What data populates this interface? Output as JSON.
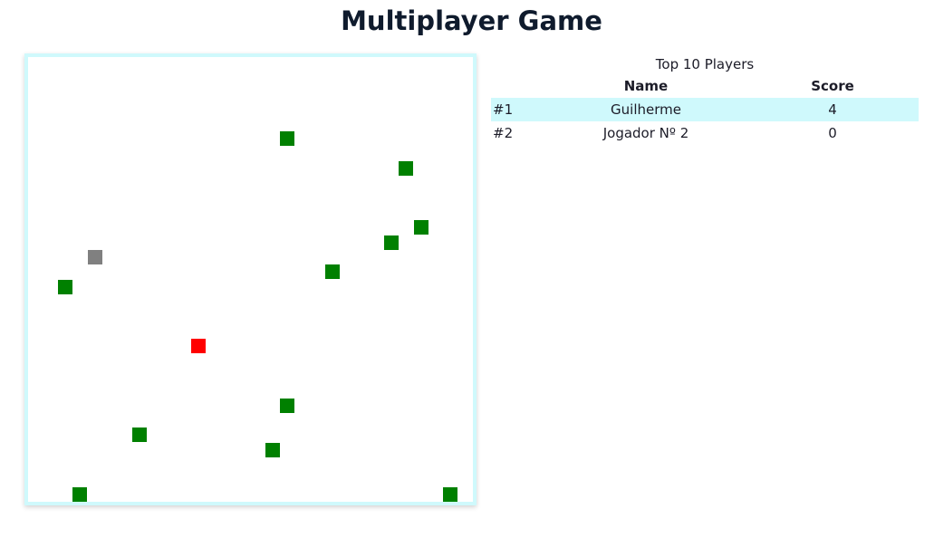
{
  "title": "Multiplayer Game",
  "colors": {
    "board_border": "#cff9fc",
    "fruit": "#008000",
    "current_player": "#ff0000",
    "other_player": "#808080",
    "highlight_row": "#cff9fc"
  },
  "board": {
    "grid_cells": 30,
    "fruits": [
      {
        "col": 17,
        "row": 5
      },
      {
        "col": 25,
        "row": 7
      },
      {
        "col": 26,
        "row": 11
      },
      {
        "col": 24,
        "row": 12
      },
      {
        "col": 20,
        "row": 14
      },
      {
        "col": 2,
        "row": 15
      },
      {
        "col": 17,
        "row": 23
      },
      {
        "col": 7,
        "row": 25
      },
      {
        "col": 16,
        "row": 26
      },
      {
        "col": 3,
        "row": 29
      },
      {
        "col": 28,
        "row": 29
      }
    ],
    "players": [
      {
        "col": 11,
        "row": 19,
        "type": "current"
      },
      {
        "col": 4,
        "row": 13,
        "type": "other"
      }
    ]
  },
  "scoreboard": {
    "caption": "Top 10 Players",
    "headers": {
      "rank": "",
      "name": "Name",
      "score": "Score"
    },
    "rows": [
      {
        "rank": "#1",
        "name": "Guilherme",
        "score": "4",
        "current": true
      },
      {
        "rank": "#2",
        "name": "Jogador Nº 2",
        "score": "0",
        "current": false
      }
    ]
  }
}
